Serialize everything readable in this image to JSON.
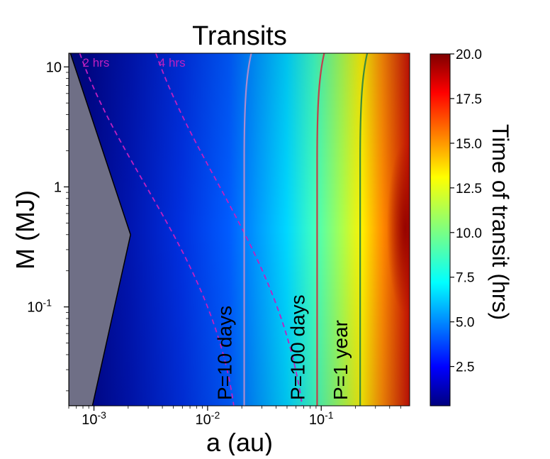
{
  "chart_data": {
    "type": "heatmap",
    "title": "Transits",
    "xlabel": "a (au)",
    "ylabel": "M (MJ)",
    "xscale": "log",
    "yscale": "log",
    "xlim": [
      0.0006,
      0.6
    ],
    "ylim": [
      0.015,
      13
    ],
    "xticks": [
      {
        "value": 0.001,
        "base": "10",
        "exp": "-3"
      },
      {
        "value": 0.01,
        "base": "10",
        "exp": "-2"
      },
      {
        "value": 0.1,
        "base": "10",
        "exp": "-1"
      }
    ],
    "yticks": [
      {
        "value": 10,
        "label": "10"
      },
      {
        "value": 1,
        "label": "1"
      },
      {
        "value": 0.1,
        "base": "10",
        "exp": "-1"
      }
    ],
    "colorbar": {
      "label": "Time of transit (hrs)",
      "colormap": "jet",
      "range": [
        0.3,
        20.0
      ],
      "ticks": [
        "20.0",
        "17.5",
        "15.0",
        "12.5",
        "10.0",
        "7.5",
        "5.0",
        "2.5"
      ]
    },
    "excluded_region": {
      "color": "#6f6f86",
      "boundary_a": [
        0.00062,
        0.0021,
        0.00097
      ],
      "boundary_M": [
        13,
        0.4,
        0.015
      ]
    },
    "period_lines": [
      {
        "label": "P=10 days",
        "a": 0.021,
        "color": "#a98ccf"
      },
      {
        "label": "P=100 days",
        "a": 0.092,
        "color": "#c0404c"
      },
      {
        "label": "P=1 year",
        "a": 0.22,
        "color": "#3c8a3c"
      }
    ],
    "duration_contours": [
      {
        "label": "2 hrs",
        "color": "#c020c0",
        "a_top": 0.00075,
        "a_bottom": 0.017
      },
      {
        "label": "4 hrs",
        "color": "#c020c0",
        "a_top": 0.0035,
        "a_bottom": 0.068
      }
    ]
  }
}
